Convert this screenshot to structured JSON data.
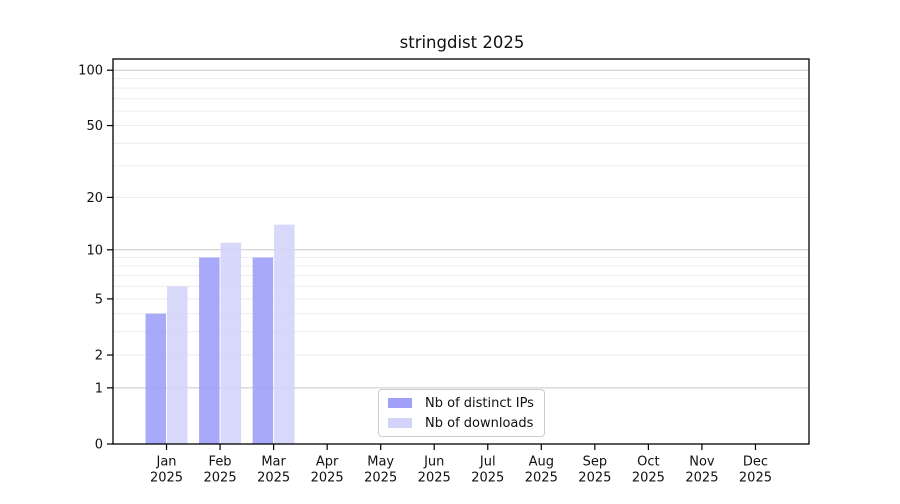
{
  "chart_data": {
    "type": "bar",
    "title": "stringdist 2025",
    "categories": [
      "Jan",
      "Feb",
      "Mar",
      "Apr",
      "May",
      "Jun",
      "Jul",
      "Aug",
      "Sep",
      "Oct",
      "Nov",
      "Dec"
    ],
    "year": "2025",
    "series": [
      {
        "name": "Nb of distinct IPs",
        "color": "#a0a0f8",
        "values": [
          4,
          9,
          9,
          0,
          0,
          0,
          0,
          0,
          0,
          0,
          0,
          0
        ]
      },
      {
        "name": "Nb of downloads",
        "color": "#d4d4fa",
        "values": [
          6,
          11,
          14,
          0,
          0,
          0,
          0,
          0,
          0,
          0,
          0,
          0
        ]
      }
    ],
    "y_axis": {
      "scale": "log1p",
      "ticks": [
        0,
        1,
        2,
        5,
        10,
        20,
        50,
        100
      ],
      "ylim": [
        0,
        115
      ],
      "major_gridlines": [
        1,
        10,
        100
      ],
      "minor_gridlines": [
        2,
        3,
        4,
        5,
        6,
        7,
        8,
        9,
        20,
        30,
        40,
        50,
        60,
        70,
        80,
        90
      ]
    },
    "xlabel": "",
    "ylabel": "",
    "grid": "on",
    "legend_position": "bottom-center"
  }
}
